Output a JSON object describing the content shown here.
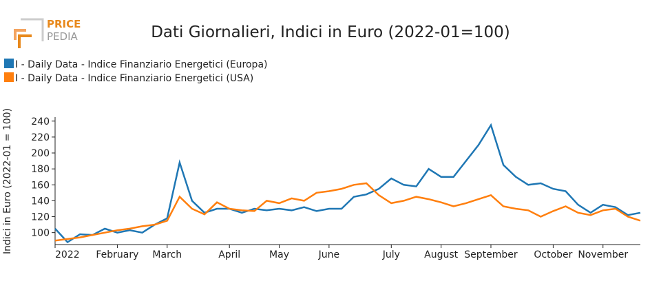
{
  "logo": {
    "line1": "PRICE",
    "line2": "PEDIA"
  },
  "chart_data": {
    "type": "line",
    "title": "Dati Giornalieri, Indici in Euro (2022-01=100)",
    "y_label": "Indici in Euro (2022-01 = 100)",
    "categories": [
      "2022",
      null,
      null,
      null,
      null,
      "February",
      null,
      null,
      null,
      "March",
      null,
      null,
      null,
      null,
      "April",
      null,
      null,
      null,
      "May",
      null,
      null,
      null,
      "June",
      null,
      null,
      null,
      null,
      "July",
      null,
      null,
      null,
      "August",
      null,
      null,
      null,
      "September",
      null,
      null,
      null,
      null,
      "October",
      null,
      null,
      null,
      "November",
      null,
      null,
      null
    ],
    "series": [
      {
        "name": "I - Daily Data - Indice Finanziario Energetici (Europa)",
        "color": "#1f77b4",
        "values": [
          105,
          88,
          98,
          97,
          105,
          100,
          103,
          100,
          110,
          118,
          188,
          140,
          125,
          130,
          130,
          125,
          130,
          128,
          130,
          128,
          132,
          127,
          130,
          130,
          145,
          148,
          155,
          168,
          160,
          158,
          180,
          170,
          170,
          190,
          210,
          235,
          185,
          170,
          160,
          162,
          155,
          152,
          135,
          125,
          135,
          132,
          122,
          125
        ]
      },
      {
        "name": "I - Daily Data - Indice Finanziario Energetici (USA)",
        "color": "#ff7f0e",
        "values": [
          90,
          92,
          94,
          97,
          100,
          103,
          105,
          108,
          110,
          115,
          145,
          130,
          123,
          138,
          130,
          128,
          127,
          140,
          137,
          143,
          140,
          150,
          152,
          155,
          160,
          162,
          147,
          137,
          140,
          145,
          142,
          138,
          133,
          137,
          142,
          147,
          133,
          130,
          128,
          120,
          127,
          133,
          125,
          122,
          128,
          130,
          120,
          115
        ]
      }
    ],
    "ylim": [
      85,
      245
    ],
    "yticks": [
      100,
      120,
      140,
      160,
      180,
      200,
      220,
      240
    ]
  }
}
